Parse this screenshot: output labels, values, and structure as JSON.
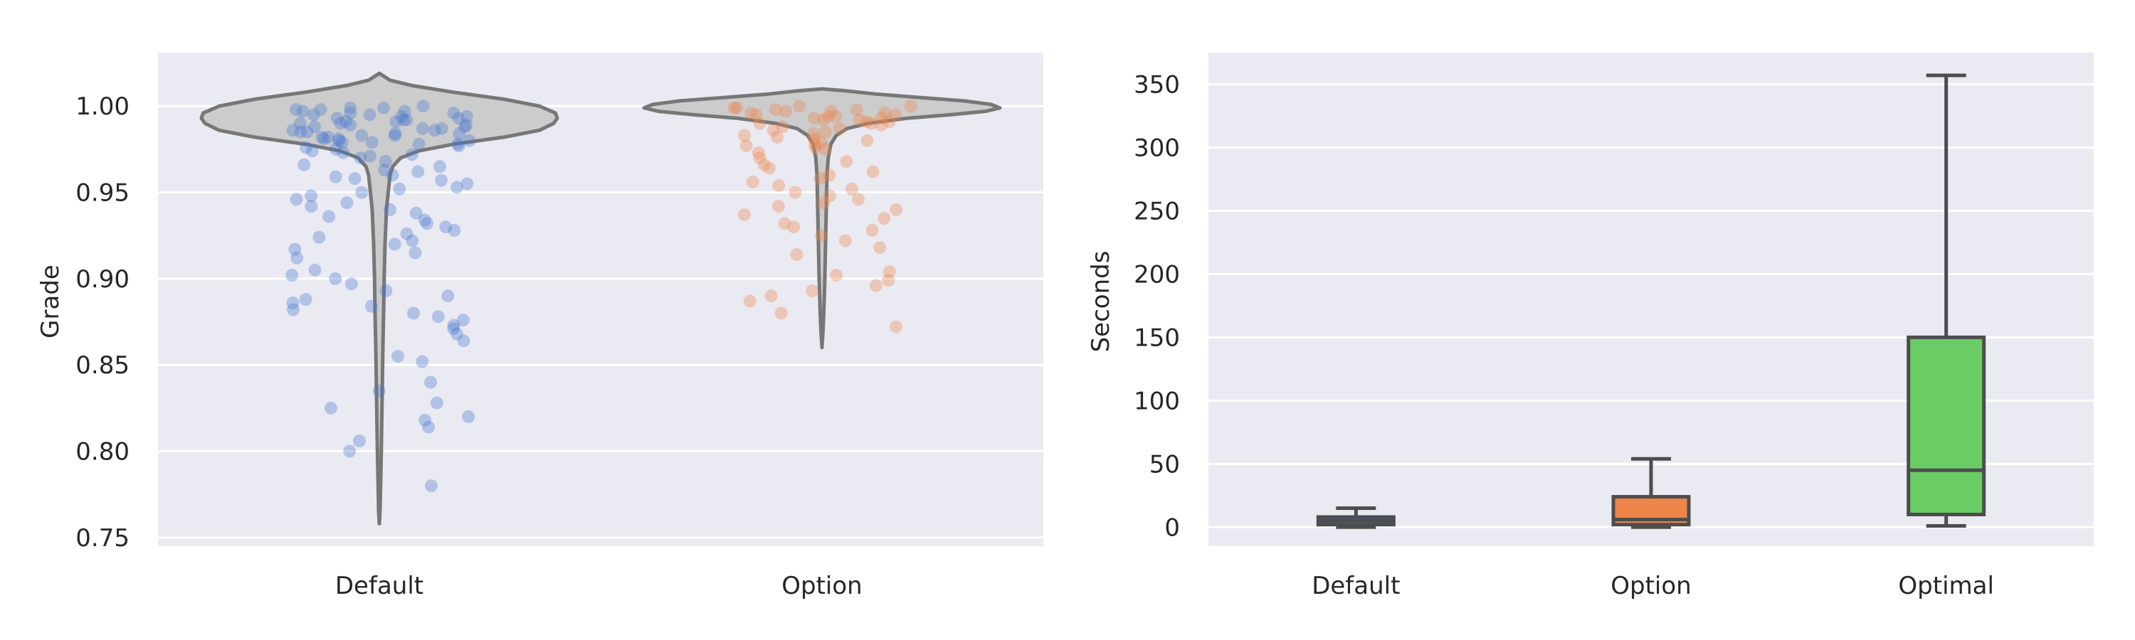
{
  "chart_data": [
    {
      "type": "violin",
      "overlay": "strip",
      "title": "",
      "xlabel": "",
      "ylabel": "Grade",
      "categories": [
        "Default",
        "Option"
      ],
      "ylim": [
        0.745,
        1.031
      ],
      "yticks": [
        0.75,
        0.8,
        0.85,
        0.9,
        0.95,
        1.0
      ],
      "ytick_labels": [
        "0.75",
        "0.80",
        "0.85",
        "0.90",
        "0.95",
        "1.00"
      ],
      "grid": true,
      "violin_color": "#cccccc",
      "violin_edge": "#777777",
      "point_colors": [
        "#4878d0",
        "#ee854a"
      ],
      "violins": [
        {
          "category": "Default",
          "profile": [
            [
              1.019,
              0.0
            ],
            [
              1.015,
              0.06
            ],
            [
              1.012,
              0.18
            ],
            [
              1.008,
              0.42
            ],
            [
              1.004,
              0.7
            ],
            [
              1.0,
              0.9
            ],
            [
              0.996,
              0.99
            ],
            [
              0.993,
              1.0
            ],
            [
              0.99,
              0.98
            ],
            [
              0.986,
              0.9
            ],
            [
              0.982,
              0.7
            ],
            [
              0.978,
              0.42
            ],
            [
              0.974,
              0.22
            ],
            [
              0.97,
              0.12
            ],
            [
              0.965,
              0.075
            ],
            [
              0.96,
              0.06
            ],
            [
              0.95,
              0.05
            ],
            [
              0.94,
              0.04
            ],
            [
              0.92,
              0.032
            ],
            [
              0.9,
              0.027
            ],
            [
              0.88,
              0.024
            ],
            [
              0.86,
              0.02
            ],
            [
              0.84,
              0.017
            ],
            [
              0.82,
              0.014
            ],
            [
              0.8,
              0.011
            ],
            [
              0.78,
              0.007
            ],
            [
              0.765,
              0.004
            ],
            [
              0.758,
              0.0
            ]
          ]
        },
        {
          "category": "Option",
          "profile": [
            [
              1.01,
              0.0
            ],
            [
              1.009,
              0.12
            ],
            [
              1.007,
              0.3
            ],
            [
              1.005,
              0.55
            ],
            [
              1.003,
              0.8
            ],
            [
              1.001,
              0.95
            ],
            [
              0.999,
              1.0
            ],
            [
              0.997,
              0.92
            ],
            [
              0.995,
              0.72
            ],
            [
              0.993,
              0.48
            ],
            [
              0.99,
              0.26
            ],
            [
              0.987,
              0.14
            ],
            [
              0.983,
              0.08
            ],
            [
              0.978,
              0.05
            ],
            [
              0.97,
              0.035
            ],
            [
              0.96,
              0.028
            ],
            [
              0.95,
              0.026
            ],
            [
              0.94,
              0.024
            ],
            [
              0.93,
              0.022
            ],
            [
              0.92,
              0.02
            ],
            [
              0.91,
              0.018
            ],
            [
              0.9,
              0.016
            ],
            [
              0.89,
              0.013
            ],
            [
              0.88,
              0.01
            ],
            [
              0.87,
              0.006
            ],
            [
              0.86,
              0.0
            ]
          ]
        }
      ],
      "points": [
        {
          "category": "Default",
          "values": [
            1.0,
            0.999,
            0.999,
            0.998,
            0.998,
            0.997,
            0.997,
            0.996,
            0.996,
            0.995,
            0.995,
            0.994,
            0.994,
            0.993,
            0.993,
            0.992,
            0.992,
            0.991,
            0.991,
            0.99,
            0.99,
            0.989,
            0.989,
            0.988,
            0.988,
            0.987,
            0.987,
            0.986,
            0.986,
            0.985,
            0.985,
            0.984,
            0.984,
            0.983,
            0.983,
            0.982,
            0.982,
            0.981,
            0.981,
            0.98,
            0.98,
            0.979,
            0.979,
            0.978,
            0.978,
            0.977,
            0.976,
            0.975,
            0.974,
            0.973,
            0.972,
            0.971,
            0.97,
            0.968,
            0.966,
            0.965,
            0.963,
            0.962,
            0.96,
            0.959,
            0.958,
            0.957,
            0.955,
            0.953,
            0.952,
            0.95,
            0.948,
            0.946,
            0.944,
            0.942,
            0.94,
            0.938,
            0.936,
            0.934,
            0.932,
            0.93,
            0.928,
            0.926,
            0.924,
            0.922,
            0.92,
            0.917,
            0.915,
            0.912,
            0.905,
            0.902,
            0.9,
            0.897,
            0.893,
            0.89,
            0.888,
            0.886,
            0.884,
            0.882,
            0.88,
            0.878,
            0.876,
            0.873,
            0.871,
            0.868,
            0.864,
            0.855,
            0.852,
            0.84,
            0.835,
            0.828,
            0.825,
            0.82,
            0.818,
            0.814,
            0.806,
            0.8,
            0.78
          ]
        },
        {
          "category": "Option",
          "values": [
            1.0,
            1.0,
            0.999,
            0.999,
            0.998,
            0.998,
            0.997,
            0.997,
            0.996,
            0.996,
            0.995,
            0.995,
            0.994,
            0.994,
            0.993,
            0.993,
            0.992,
            0.992,
            0.991,
            0.991,
            0.99,
            0.99,
            0.989,
            0.988,
            0.987,
            0.986,
            0.985,
            0.984,
            0.983,
            0.982,
            0.981,
            0.98,
            0.979,
            0.978,
            0.977,
            0.976,
            0.975,
            0.973,
            0.97,
            0.968,
            0.966,
            0.964,
            0.962,
            0.96,
            0.958,
            0.956,
            0.954,
            0.952,
            0.95,
            0.948,
            0.946,
            0.944,
            0.942,
            0.94,
            0.937,
            0.935,
            0.932,
            0.93,
            0.928,
            0.925,
            0.922,
            0.918,
            0.914,
            0.904,
            0.902,
            0.899,
            0.896,
            0.893,
            0.89,
            0.887,
            0.88,
            0.872
          ]
        }
      ]
    },
    {
      "type": "box",
      "title": "",
      "xlabel": "",
      "ylabel": "Seconds",
      "categories": [
        "Default",
        "Option",
        "Optimal"
      ],
      "ylim": [
        -15,
        375
      ],
      "yticks": [
        0,
        50,
        100,
        150,
        200,
        250,
        300,
        350
      ],
      "ytick_labels": [
        "0",
        "50",
        "100",
        "150",
        "200",
        "250",
        "300",
        "350"
      ],
      "grid": true,
      "boxes": [
        {
          "category": "Default",
          "whisker_low": 0,
          "q1": 2,
          "median": 5,
          "q3": 8,
          "whisker_high": 15,
          "color": "#4878d0"
        },
        {
          "category": "Option",
          "whisker_low": 0,
          "q1": 2,
          "median": 6,
          "q3": 24,
          "whisker_high": 54,
          "color": "#ee854a"
        },
        {
          "category": "Optimal",
          "whisker_low": 1,
          "q1": 10,
          "median": 45,
          "q3": 150,
          "whisker_high": 357,
          "color": "#6acc64"
        }
      ]
    }
  ]
}
